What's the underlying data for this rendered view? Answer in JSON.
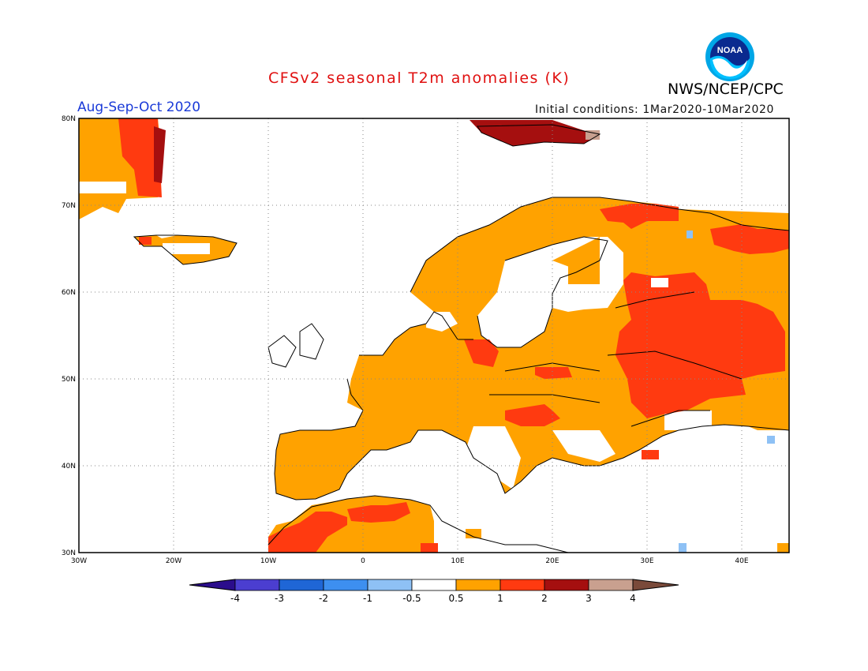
{
  "header": {
    "title": "CFSv2 seasonal T2m anomalies (K)",
    "agency": "NWS/NCEP/CPC",
    "season": "Aug-Sep-Oct 2020",
    "initial_conditions": "Initial conditions: 1Mar2020-10Mar2020",
    "logo_text": "NOAA"
  },
  "map": {
    "region": "Europe",
    "lon_range": [
      -30,
      45
    ],
    "lat_range": [
      30,
      80
    ],
    "lat_labels": [
      "80N",
      "70N",
      "60N",
      "50N",
      "40N",
      "30N"
    ],
    "lon_labels": [
      "30W",
      "20W",
      "10W",
      "0",
      "10E",
      "20E",
      "30E",
      "40E"
    ],
    "gridlines": "dotted"
  },
  "colorbar": {
    "labels": [
      "-4",
      "-3",
      "-2",
      "-1",
      "-0.5",
      "0.5",
      "1",
      "2",
      "3",
      "4"
    ],
    "colors": [
      "#2b0d8c",
      "#4b3ed0",
      "#1f66d6",
      "#3d8ff0",
      "#8ec1f5",
      "#ffffff",
      "#ffa200",
      "#ff3a10",
      "#a50f0f",
      "#c9a08f",
      "#7a4a3a"
    ]
  },
  "colors": {
    "land_mild": "#ffa200",
    "land_warm": "#ff3a10",
    "land_hot": "#a50f0f",
    "land_extreme": "#c9a08f",
    "cool": "#8ec1f5"
  }
}
